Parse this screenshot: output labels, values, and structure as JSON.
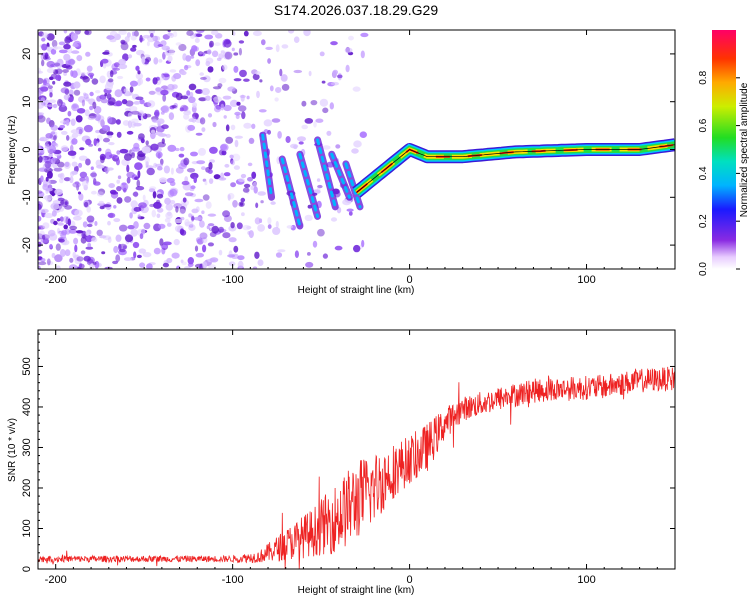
{
  "title": "S174.2026.037.18.29.G29",
  "colors": {
    "snr_line": "#ee2222",
    "spectrogram_blob": "#6a1fd8",
    "axis": "#000000"
  },
  "chart_data": [
    {
      "type": "heatmap",
      "name": "spectrogram",
      "xlabel": "Height of straight line (km)",
      "ylabel": "Frequency (Hz)",
      "xlim": [
        -210,
        150
      ],
      "ylim": [
        -25,
        25
      ],
      "xticks": [
        -200,
        -100,
        0,
        100
      ],
      "xtick_labels": [
        "-200",
        "-100",
        "0",
        "100"
      ],
      "yticks": [
        -20,
        -10,
        0,
        10,
        20
      ],
      "ytick_labels": [
        "-20",
        "-10",
        "0",
        "10",
        "20"
      ],
      "colorbar": {
        "label": "Normalized spectral amplitude",
        "range": [
          0,
          1
        ],
        "ticks": [
          0.0,
          0.2,
          0.4,
          0.6,
          0.8
        ],
        "tick_labels": [
          "0.0",
          "0.2",
          "0.4",
          "0.6",
          "0.8"
        ]
      },
      "ridge": {
        "description_points_x": [
          -80,
          -70,
          -60,
          -50,
          -40,
          -30,
          -20,
          -10,
          0,
          10,
          30,
          60,
          100,
          130,
          150
        ],
        "frequency_hz": [
          2,
          -2,
          -5,
          -8,
          -10,
          -9,
          -6,
          -3,
          0,
          -1.5,
          -1.5,
          -0.5,
          0,
          0,
          1
        ]
      }
    },
    {
      "type": "line",
      "name": "snr",
      "xlabel": "Height of straight line (km)",
      "ylabel": "SNR (10 * v/v)",
      "xlim": [
        -210,
        150
      ],
      "ylim": [
        0,
        590
      ],
      "xticks": [
        -200,
        -100,
        0,
        100
      ],
      "xtick_labels": [
        "-200",
        "-100",
        "0",
        "100"
      ],
      "yticks": [
        0,
        100,
        200,
        300,
        400,
        500
      ],
      "ytick_labels": [
        "0",
        "100",
        "200",
        "300",
        "400",
        "500"
      ],
      "trend_x": [
        -210,
        -100,
        -85,
        -70,
        -55,
        -40,
        -30,
        -20,
        -10,
        0,
        10,
        20,
        30,
        50,
        70,
        90,
        110,
        130,
        150
      ],
      "trend_y": [
        25,
        25,
        30,
        60,
        90,
        130,
        170,
        200,
        240,
        270,
        300,
        360,
        395,
        420,
        440,
        445,
        450,
        465,
        470
      ],
      "noise_amplitude": [
        8,
        8,
        15,
        40,
        60,
        90,
        100,
        90,
        70,
        60,
        60,
        40,
        30,
        30,
        30,
        30,
        30,
        30,
        30
      ]
    }
  ]
}
